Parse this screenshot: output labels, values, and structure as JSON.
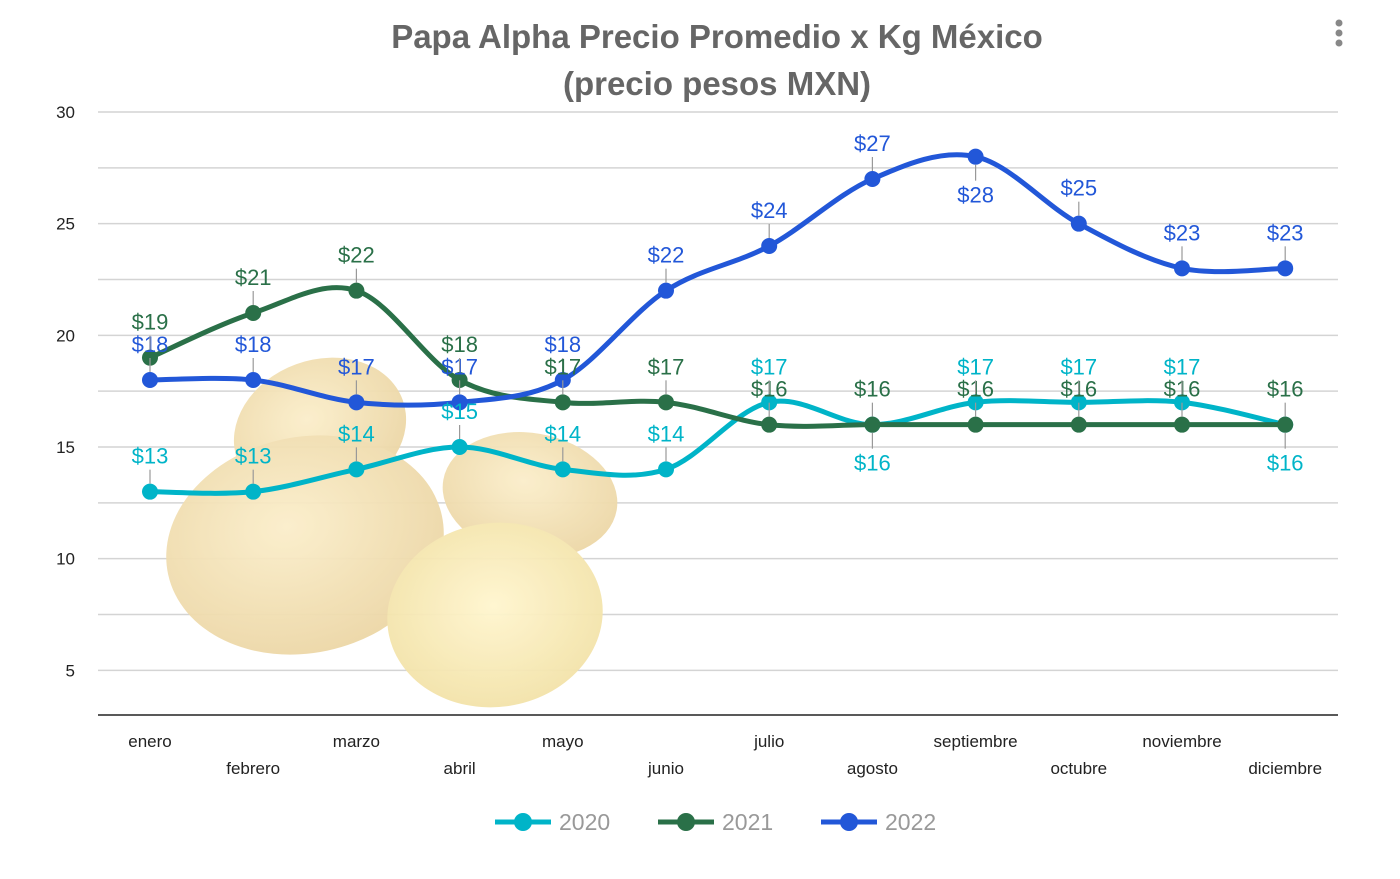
{
  "chart_data": {
    "type": "line",
    "title": [
      "Papa Alpha Precio Promedio x Kg México",
      "(precio pesos MXN)"
    ],
    "xlabel": "",
    "ylabel": "",
    "categories": [
      "enero",
      "febrero",
      "marzo",
      "abril",
      "mayo",
      "junio",
      "julio",
      "agosto",
      "septiembre",
      "octubre",
      "noviembre",
      "diciembre"
    ],
    "ylim": [
      3,
      30
    ],
    "yticks": [
      5,
      10,
      15,
      20,
      25,
      30
    ],
    "grid": true,
    "smooth": true,
    "legend_position": "bottom",
    "data_label_prefix": "$",
    "series": [
      {
        "name": "2020",
        "color": "#00b4c8",
        "values": [
          13,
          13,
          14,
          15,
          14,
          14,
          17,
          16,
          17,
          17,
          17,
          16
        ]
      },
      {
        "name": "2021",
        "color": "#2a7048",
        "values": [
          19,
          21,
          22,
          18,
          17,
          17,
          16,
          16,
          16,
          16,
          16,
          16
        ]
      },
      {
        "name": "2022",
        "color": "#2257d8",
        "values": [
          18,
          18,
          17,
          17,
          18,
          22,
          24,
          27,
          28,
          25,
          23,
          23
        ]
      }
    ]
  },
  "menu": {
    "icon": "more-vertical-icon"
  }
}
